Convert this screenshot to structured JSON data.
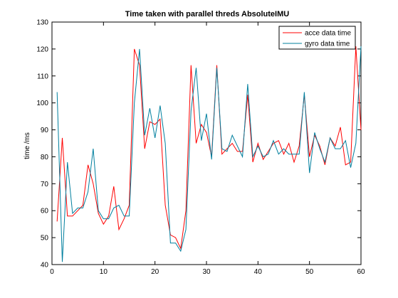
{
  "chart_data": {
    "type": "line",
    "title": "Time taken with parallel threds AbsoluteIMU",
    "xlabel": "",
    "ylabel": "time /ms",
    "xlim": [
      0,
      60
    ],
    "ylim": [
      40,
      130
    ],
    "xticks": [
      0,
      10,
      20,
      30,
      40,
      50,
      60
    ],
    "yticks": [
      40,
      50,
      60,
      70,
      80,
      90,
      100,
      110,
      120,
      130
    ],
    "grid": false,
    "legend_position": "top-right",
    "series": [
      {
        "name": "acce data time",
        "color": "#ff0000",
        "x": [
          1,
          2,
          3,
          4,
          5,
          6,
          7,
          8,
          9,
          10,
          11,
          12,
          13,
          14,
          15,
          16,
          17,
          18,
          19,
          20,
          21,
          22,
          23,
          24,
          25,
          26,
          27,
          28,
          29,
          30,
          31,
          32,
          33,
          34,
          35,
          36,
          37,
          38,
          39,
          40,
          41,
          42,
          43,
          44,
          45,
          46,
          47,
          48,
          49,
          50,
          51,
          52,
          53,
          54,
          55,
          56,
          57,
          58,
          59,
          60
        ],
        "values": [
          56,
          87,
          58,
          58,
          60,
          62,
          77,
          70,
          59,
          55,
          58,
          69,
          53,
          57,
          62,
          120,
          114,
          83,
          93,
          92,
          94,
          62,
          51,
          50,
          46,
          60,
          114,
          85,
          92,
          89,
          80,
          114,
          81,
          83,
          85,
          82,
          82,
          103,
          78,
          85,
          79,
          82,
          85,
          86,
          81,
          85,
          78,
          84,
          103,
          80,
          88,
          84,
          77,
          87,
          84,
          91,
          77,
          78,
          121,
          90
        ]
      },
      {
        "name": "gyro data time",
        "color": "#007f9e",
        "x": [
          1,
          2,
          3,
          4,
          5,
          6,
          7,
          8,
          9,
          10,
          11,
          12,
          13,
          14,
          15,
          16,
          17,
          18,
          19,
          20,
          21,
          22,
          23,
          24,
          25,
          26,
          27,
          28,
          29,
          30,
          31,
          32,
          33,
          34,
          35,
          36,
          37,
          38,
          39,
          40,
          41,
          42,
          43,
          44,
          45,
          46,
          47,
          48,
          49,
          50,
          51,
          52,
          53,
          54,
          55,
          56,
          57,
          58,
          59,
          60
        ],
        "values": [
          104,
          41,
          78,
          59,
          61,
          61,
          67,
          83,
          60,
          57,
          57,
          61,
          62,
          58,
          58,
          100,
          120,
          88,
          98,
          87,
          99,
          85,
          48,
          48,
          45,
          53,
          97,
          113,
          86,
          96,
          79,
          113,
          83,
          82,
          88,
          84,
          80,
          107,
          80,
          84,
          80,
          81,
          86,
          81,
          83,
          81,
          81,
          81,
          104,
          74,
          89,
          83,
          78,
          87,
          83,
          83,
          86,
          76,
          85,
          121
        ]
      }
    ]
  }
}
